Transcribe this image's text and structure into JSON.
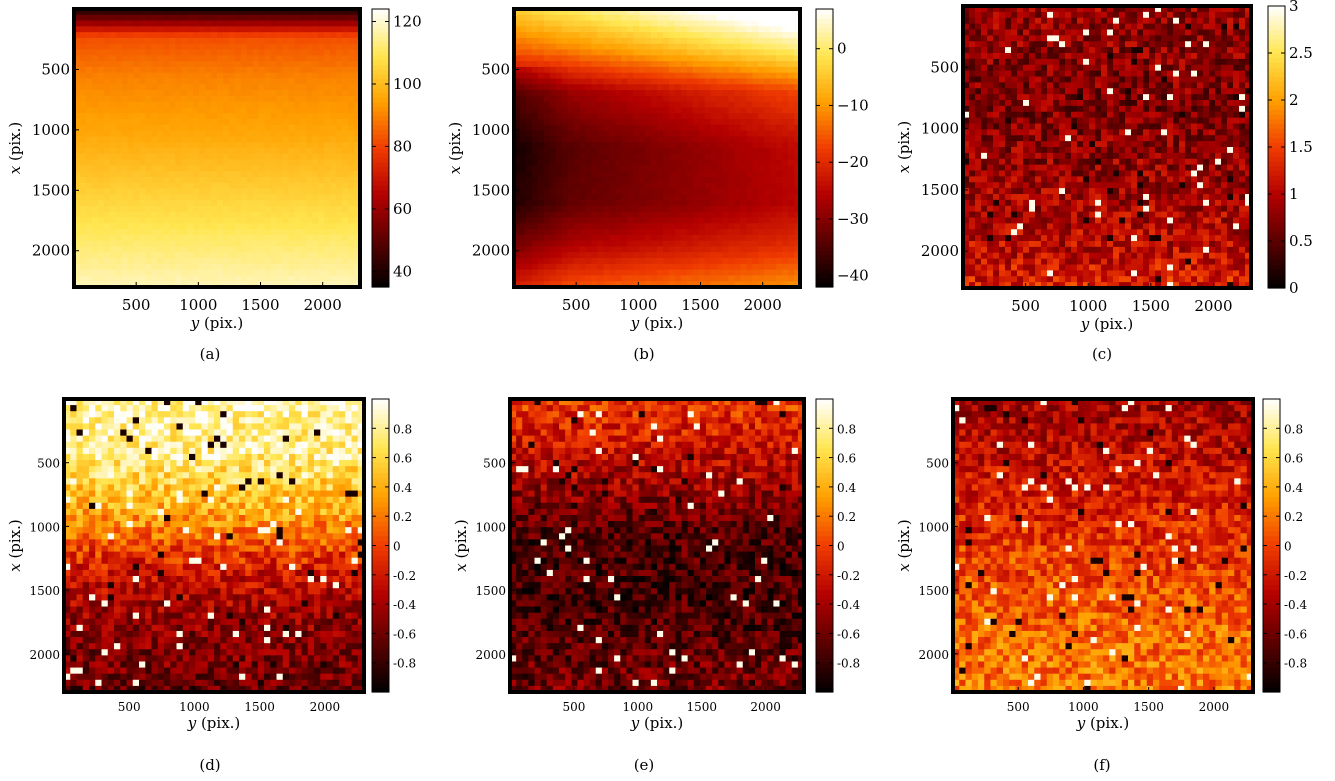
{
  "colormap": [
    "#000000",
    "#5a0000",
    "#b40000",
    "#f03c00",
    "#ffa000",
    "#ffe650",
    "#ffffff"
  ],
  "chart_data": [
    {
      "type": "heatmap",
      "caption": "(a)",
      "x_label_var": "y",
      "x_label_unit": "(pix.)",
      "y_label_var": "x",
      "y_label_unit": "(pix.)",
      "x_range": [
        0,
        2300
      ],
      "y_range": [
        0,
        2300
      ],
      "x_ticks": [
        500,
        1000,
        1500,
        2000
      ],
      "y_ticks": [
        500,
        1000,
        1500,
        2000
      ],
      "colorbar": {
        "range": [
          35,
          124
        ],
        "ticks": [
          40,
          60,
          80,
          100,
          120
        ],
        "tick_labels": [
          "40",
          "60",
          "80",
          "100",
          "120"
        ]
      },
      "texture": "smooth",
      "profile": [
        [
          0,
          40
        ],
        [
          0.05,
          60
        ],
        [
          0.1,
          82
        ],
        [
          0.25,
          90
        ],
        [
          0.45,
          96
        ],
        [
          0.65,
          104
        ],
        [
          0.85,
          112
        ],
        [
          1,
          118
        ]
      ]
    },
    {
      "type": "heatmap",
      "caption": "(b)",
      "x_label_var": "y",
      "x_label_unit": "(pix.)",
      "y_label_var": "x",
      "y_label_unit": "(pix.)",
      "x_range": [
        0,
        2300
      ],
      "y_range": [
        0,
        2300
      ],
      "x_ticks": [
        500,
        1000,
        1500,
        2000
      ],
      "y_ticks": [
        500,
        1000,
        1500,
        2000
      ],
      "colorbar": {
        "range": [
          -42,
          7
        ],
        "ticks": [
          -40,
          -30,
          -20,
          -10,
          0
        ],
        "tick_labels": [
          "−40",
          "−30",
          "−20",
          "−10",
          "0"
        ]
      },
      "texture": "smooth-gradient",
      "profile": [
        [
          0,
          0
        ],
        [
          0.15,
          -12
        ],
        [
          0.3,
          -28
        ],
        [
          0.5,
          -34
        ],
        [
          0.7,
          -33
        ],
        [
          0.85,
          -26
        ],
        [
          1,
          -16
        ]
      ]
    },
    {
      "type": "heatmap",
      "caption": "(c)",
      "x_label_var": "y",
      "x_label_unit": "(pix.)",
      "y_label_var": "x",
      "y_label_unit": "(pix.)",
      "x_range": [
        0,
        2300
      ],
      "y_range": [
        0,
        2300
      ],
      "x_ticks": [
        500,
        1000,
        1500,
        2000
      ],
      "y_ticks": [
        500,
        1000,
        1500,
        2000
      ],
      "colorbar": {
        "range": [
          0,
          3
        ],
        "ticks": [
          0,
          0.5,
          1,
          1.5,
          2,
          2.5,
          3
        ],
        "tick_labels": [
          "0",
          "0.5",
          "1",
          "1.5",
          "2",
          "2.5",
          "3"
        ]
      },
      "texture": "noisy",
      "profile": [
        [
          0,
          0.85
        ],
        [
          0.35,
          0.7
        ],
        [
          0.6,
          0.85
        ],
        [
          0.85,
          1.05
        ],
        [
          1,
          1.3
        ]
      ]
    },
    {
      "type": "heatmap",
      "caption": "(d)",
      "x_label_var": "y",
      "x_label_unit": "(pix.)",
      "y_label_var": "x",
      "y_label_unit": "(pix.)",
      "x_range": [
        0,
        2300
      ],
      "y_range": [
        0,
        2300
      ],
      "x_ticks": [
        500,
        1000,
        1500,
        2000
      ],
      "y_ticks": [
        500,
        1000,
        1500,
        2000
      ],
      "colorbar": {
        "range": [
          -1,
          1
        ],
        "ticks": [
          -0.8,
          -0.6,
          -0.4,
          -0.2,
          0,
          0.2,
          0.4,
          0.6,
          0.8
        ],
        "tick_labels": [
          "-0.8",
          "-0.6",
          "-0.4",
          "-0.2",
          "0",
          "0.2",
          "0.4",
          "0.6",
          "0.8"
        ]
      },
      "texture": "noisy",
      "profile": [
        [
          0,
          0.85
        ],
        [
          0.2,
          0.75
        ],
        [
          0.4,
          0.35
        ],
        [
          0.6,
          -0.25
        ],
        [
          0.8,
          -0.5
        ],
        [
          1,
          -0.6
        ]
      ]
    },
    {
      "type": "heatmap",
      "caption": "(e)",
      "x_label_var": "y",
      "x_label_unit": "(pix.)",
      "y_label_var": "x",
      "y_label_unit": "(pix.)",
      "x_range": [
        0,
        2300
      ],
      "y_range": [
        0,
        2300
      ],
      "x_ticks": [
        500,
        1000,
        1500,
        2000
      ],
      "y_ticks": [
        500,
        1000,
        1500,
        2000
      ],
      "colorbar": {
        "range": [
          -1,
          1
        ],
        "ticks": [
          -0.8,
          -0.6,
          -0.4,
          -0.2,
          0,
          0.2,
          0.4,
          0.6,
          0.8
        ],
        "tick_labels": [
          "-0.8",
          "-0.6",
          "-0.4",
          "-0.2",
          "0",
          "0.2",
          "0.4",
          "0.6",
          "0.8"
        ]
      },
      "texture": "noisy",
      "profile": [
        [
          0,
          0.0
        ],
        [
          0.25,
          -0.35
        ],
        [
          0.45,
          -0.7
        ],
        [
          0.7,
          -0.75
        ],
        [
          1,
          -0.55
        ]
      ]
    },
    {
      "type": "heatmap",
      "caption": "(f)",
      "x_label_var": "y",
      "x_label_unit": "(pix.)",
      "y_label_var": "x",
      "y_label_unit": "(pix.)",
      "x_range": [
        0,
        2300
      ],
      "y_range": [
        0,
        2300
      ],
      "x_ticks": [
        500,
        1000,
        1500,
        2000
      ],
      "y_ticks": [
        500,
        1000,
        1500,
        2000
      ],
      "colorbar": {
        "range": [
          -1,
          1
        ],
        "ticks": [
          -0.8,
          -0.6,
          -0.4,
          -0.2,
          0,
          0.2,
          0.4,
          0.6,
          0.8
        ],
        "tick_labels": [
          "-0.8",
          "-0.6",
          "-0.4",
          "-0.2",
          "0",
          "0.2",
          "0.4",
          "0.6",
          "0.8"
        ]
      },
      "texture": "noisy",
      "profile": [
        [
          0,
          -0.4
        ],
        [
          0.3,
          -0.2
        ],
        [
          0.55,
          0.0
        ],
        [
          0.8,
          0.15
        ],
        [
          1,
          0.2
        ]
      ]
    }
  ]
}
